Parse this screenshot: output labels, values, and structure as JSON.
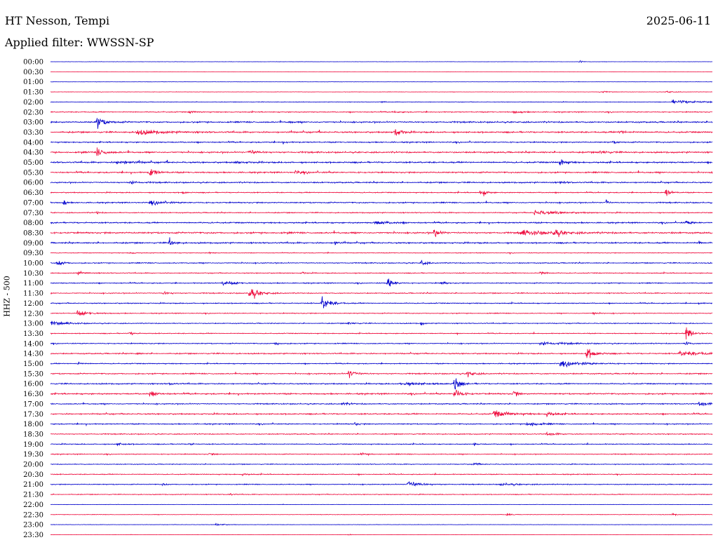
{
  "header": {
    "station": "HT Nesson, Tempi",
    "date": "2025-06-11",
    "filter": "Applied filter: WWSSN-SP"
  },
  "chart_data": {
    "type": "line",
    "title": "HT Nesson, Tempi",
    "ylabel": "HHZ - 500",
    "row_labels": [
      "00:00",
      "00:30",
      "01:00",
      "01:30",
      "02:00",
      "02:30",
      "03:00",
      "03:30",
      "04:00",
      "04:30",
      "05:00",
      "05:30",
      "06:00",
      "06:30",
      "07:00",
      "07:30",
      "08:00",
      "08:30",
      "09:00",
      "09:30",
      "10:00",
      "10:30",
      "11:00",
      "11:30",
      "12:00",
      "12:30",
      "13:00",
      "13:30",
      "14:00",
      "14:30",
      "15:00",
      "15:30",
      "16:00",
      "16:30",
      "17:00",
      "17:30",
      "18:00",
      "18:30",
      "19:00",
      "19:30",
      "20:00",
      "20:30",
      "21:00",
      "21:30",
      "22:00",
      "22:30",
      "23:00",
      "23:30"
    ],
    "trace_colors": [
      "#0000cc",
      "#ee0a3c"
    ],
    "noise_levels": [
      0.3,
      0.2,
      0.3,
      0.4,
      0.6,
      1.0,
      1.4,
      1.5,
      1.2,
      1.5,
      1.5,
      1.4,
      1.3,
      1.0,
      1.2,
      1.0,
      1.3,
      1.6,
      1.4,
      0.7,
      1.0,
      0.9,
      1.0,
      1.0,
      1.0,
      0.9,
      0.9,
      0.9,
      1.0,
      1.2,
      1.0,
      1.2,
      1.2,
      1.4,
      1.1,
      1.3,
      1.1,
      1.0,
      0.9,
      0.9,
      0.8,
      0.9,
      0.9,
      0.8,
      0.4,
      0.5,
      0.4,
      0.3
    ],
    "events": [
      [
        [
          0.8,
          5,
          3
        ]
      ],
      [],
      [],
      [
        [
          0.83,
          3,
          8
        ],
        [
          0.93,
          3,
          8
        ]
      ],
      [
        [
          0.94,
          4,
          40
        ],
        [
          0.5,
          2,
          3
        ]
      ],
      [
        [
          0.21,
          3,
          6
        ],
        [
          0.52,
          3,
          6
        ],
        [
          0.7,
          3,
          10
        ]
      ],
      [
        [
          0.07,
          14,
          10
        ],
        [
          0.36,
          3,
          4
        ]
      ],
      [
        [
          0.13,
          6,
          30
        ],
        [
          0.52,
          16,
          6
        ],
        [
          0.86,
          4,
          10
        ]
      ],
      [
        [
          0.35,
          2,
          6
        ],
        [
          0.85,
          3,
          6
        ]
      ],
      [
        [
          0.07,
          10,
          10
        ],
        [
          0.3,
          6,
          10
        ],
        [
          0.83,
          4,
          10
        ]
      ],
      [
        [
          0.77,
          12,
          6
        ],
        [
          0.1,
          4,
          20
        ],
        [
          0.28,
          3,
          10
        ]
      ],
      [
        [
          0.15,
          12,
          8
        ],
        [
          0.37,
          3,
          12
        ]
      ],
      [
        [
          0.12,
          4,
          10
        ],
        [
          0.77,
          3,
          6
        ]
      ],
      [
        [
          0.65,
          12,
          6
        ],
        [
          0.93,
          10,
          6
        ],
        [
          0.2,
          3,
          4
        ]
      ],
      [
        [
          0.02,
          8,
          3
        ],
        [
          0.84,
          12,
          2
        ],
        [
          0.15,
          4,
          20
        ]
      ],
      [
        [
          0.73,
          6,
          30
        ],
        [
          0.07,
          3,
          4
        ]
      ],
      [
        [
          0.49,
          4,
          20
        ],
        [
          0.96,
          5,
          8
        ]
      ],
      [
        [
          0.58,
          16,
          6
        ],
        [
          0.71,
          6,
          40
        ],
        [
          0.76,
          10,
          8
        ]
      ],
      [
        [
          0.18,
          10,
          6
        ],
        [
          0.43,
          6,
          3
        ],
        [
          0.98,
          4,
          3
        ]
      ],
      [
        [
          0.12,
          3,
          6
        ],
        [
          0.24,
          3,
          4
        ]
      ],
      [
        [
          0.56,
          8,
          6
        ],
        [
          0.01,
          6,
          8
        ]
      ],
      [
        [
          0.04,
          4,
          10
        ],
        [
          0.38,
          3,
          4
        ],
        [
          0.74,
          5,
          6
        ]
      ],
      [
        [
          0.51,
          18,
          6
        ],
        [
          0.26,
          6,
          14
        ],
        [
          0.59,
          4,
          6
        ]
      ],
      [
        [
          0.3,
          16,
          12
        ],
        [
          0.17,
          4,
          8
        ]
      ],
      [
        [
          0.41,
          18,
          10
        ],
        [
          0.98,
          4,
          3
        ]
      ],
      [
        [
          0.04,
          6,
          16
        ],
        [
          0.82,
          3,
          6
        ]
      ],
      [
        [
          0.0,
          5,
          20
        ],
        [
          0.56,
          6,
          3
        ],
        [
          0.45,
          3,
          8
        ]
      ],
      [
        [
          0.96,
          14,
          8
        ],
        [
          0.12,
          4,
          6
        ]
      ],
      [
        [
          0.96,
          6,
          4
        ],
        [
          0.34,
          4,
          6
        ],
        [
          0.74,
          4,
          30
        ]
      ],
      [
        [
          0.81,
          14,
          10
        ],
        [
          0.95,
          6,
          30
        ],
        [
          0.13,
          3,
          4
        ]
      ],
      [
        [
          0.77,
          6,
          30
        ],
        [
          0.04,
          3,
          6
        ]
      ],
      [
        [
          0.45,
          12,
          8
        ],
        [
          0.63,
          8,
          8
        ]
      ],
      [
        [
          0.61,
          20,
          6
        ],
        [
          0.53,
          4,
          30
        ],
        [
          0.18,
          3,
          6
        ]
      ],
      [
        [
          0.61,
          16,
          8
        ],
        [
          0.7,
          10,
          4
        ],
        [
          0.15,
          6,
          10
        ]
      ],
      [
        [
          0.98,
          6,
          10
        ],
        [
          0.44,
          3,
          10
        ]
      ],
      [
        [
          0.67,
          8,
          20
        ],
        [
          0.75,
          6,
          10
        ]
      ],
      [
        [
          0.46,
          4,
          4
        ],
        [
          0.72,
          6,
          14
        ]
      ],
      [
        [
          0.75,
          4,
          10
        ]
      ],
      [
        [
          0.21,
          4,
          4
        ],
        [
          0.64,
          3,
          4
        ],
        [
          0.1,
          3,
          10
        ]
      ],
      [
        [
          0.24,
          3,
          6
        ],
        [
          0.47,
          3,
          8
        ]
      ],
      [
        [
          0.64,
          4,
          6
        ]
      ],
      [
        [
          0.29,
          3,
          6
        ]
      ],
      [
        [
          0.17,
          4,
          3
        ],
        [
          0.54,
          8,
          16
        ],
        [
          0.68,
          3,
          20
        ]
      ],
      [
        [
          0.27,
          3,
          4
        ]
      ],
      [],
      [
        [
          0.69,
          4,
          4
        ],
        [
          0.94,
          3,
          4
        ]
      ],
      [
        [
          0.25,
          3,
          10
        ]
      ],
      [
        [
          0.45,
          3,
          3
        ]
      ]
    ]
  }
}
